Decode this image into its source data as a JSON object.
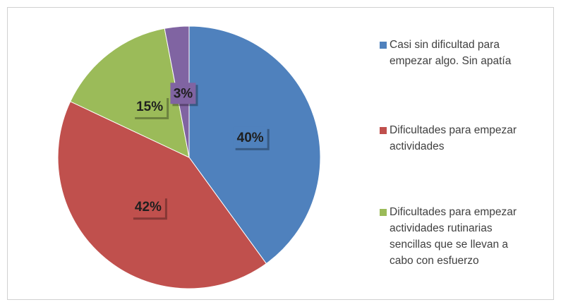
{
  "chart_data": {
    "type": "pie",
    "categories": [
      "Casi sin dificultad para empezar algo. Sin apatía",
      "Dificultades para empezar actividades",
      "Dificultades para empezar actividades rutinarias sencillas que se llevan a cabo con esfuerzo",
      null
    ],
    "values": [
      40,
      42,
      15,
      3
    ],
    "value_labels": [
      "40%",
      "42%",
      "15%",
      "3%"
    ],
    "colors": [
      "#4f81bd",
      "#c0504d",
      "#9bbb59",
      "#8064a2"
    ],
    "legend": "right"
  }
}
